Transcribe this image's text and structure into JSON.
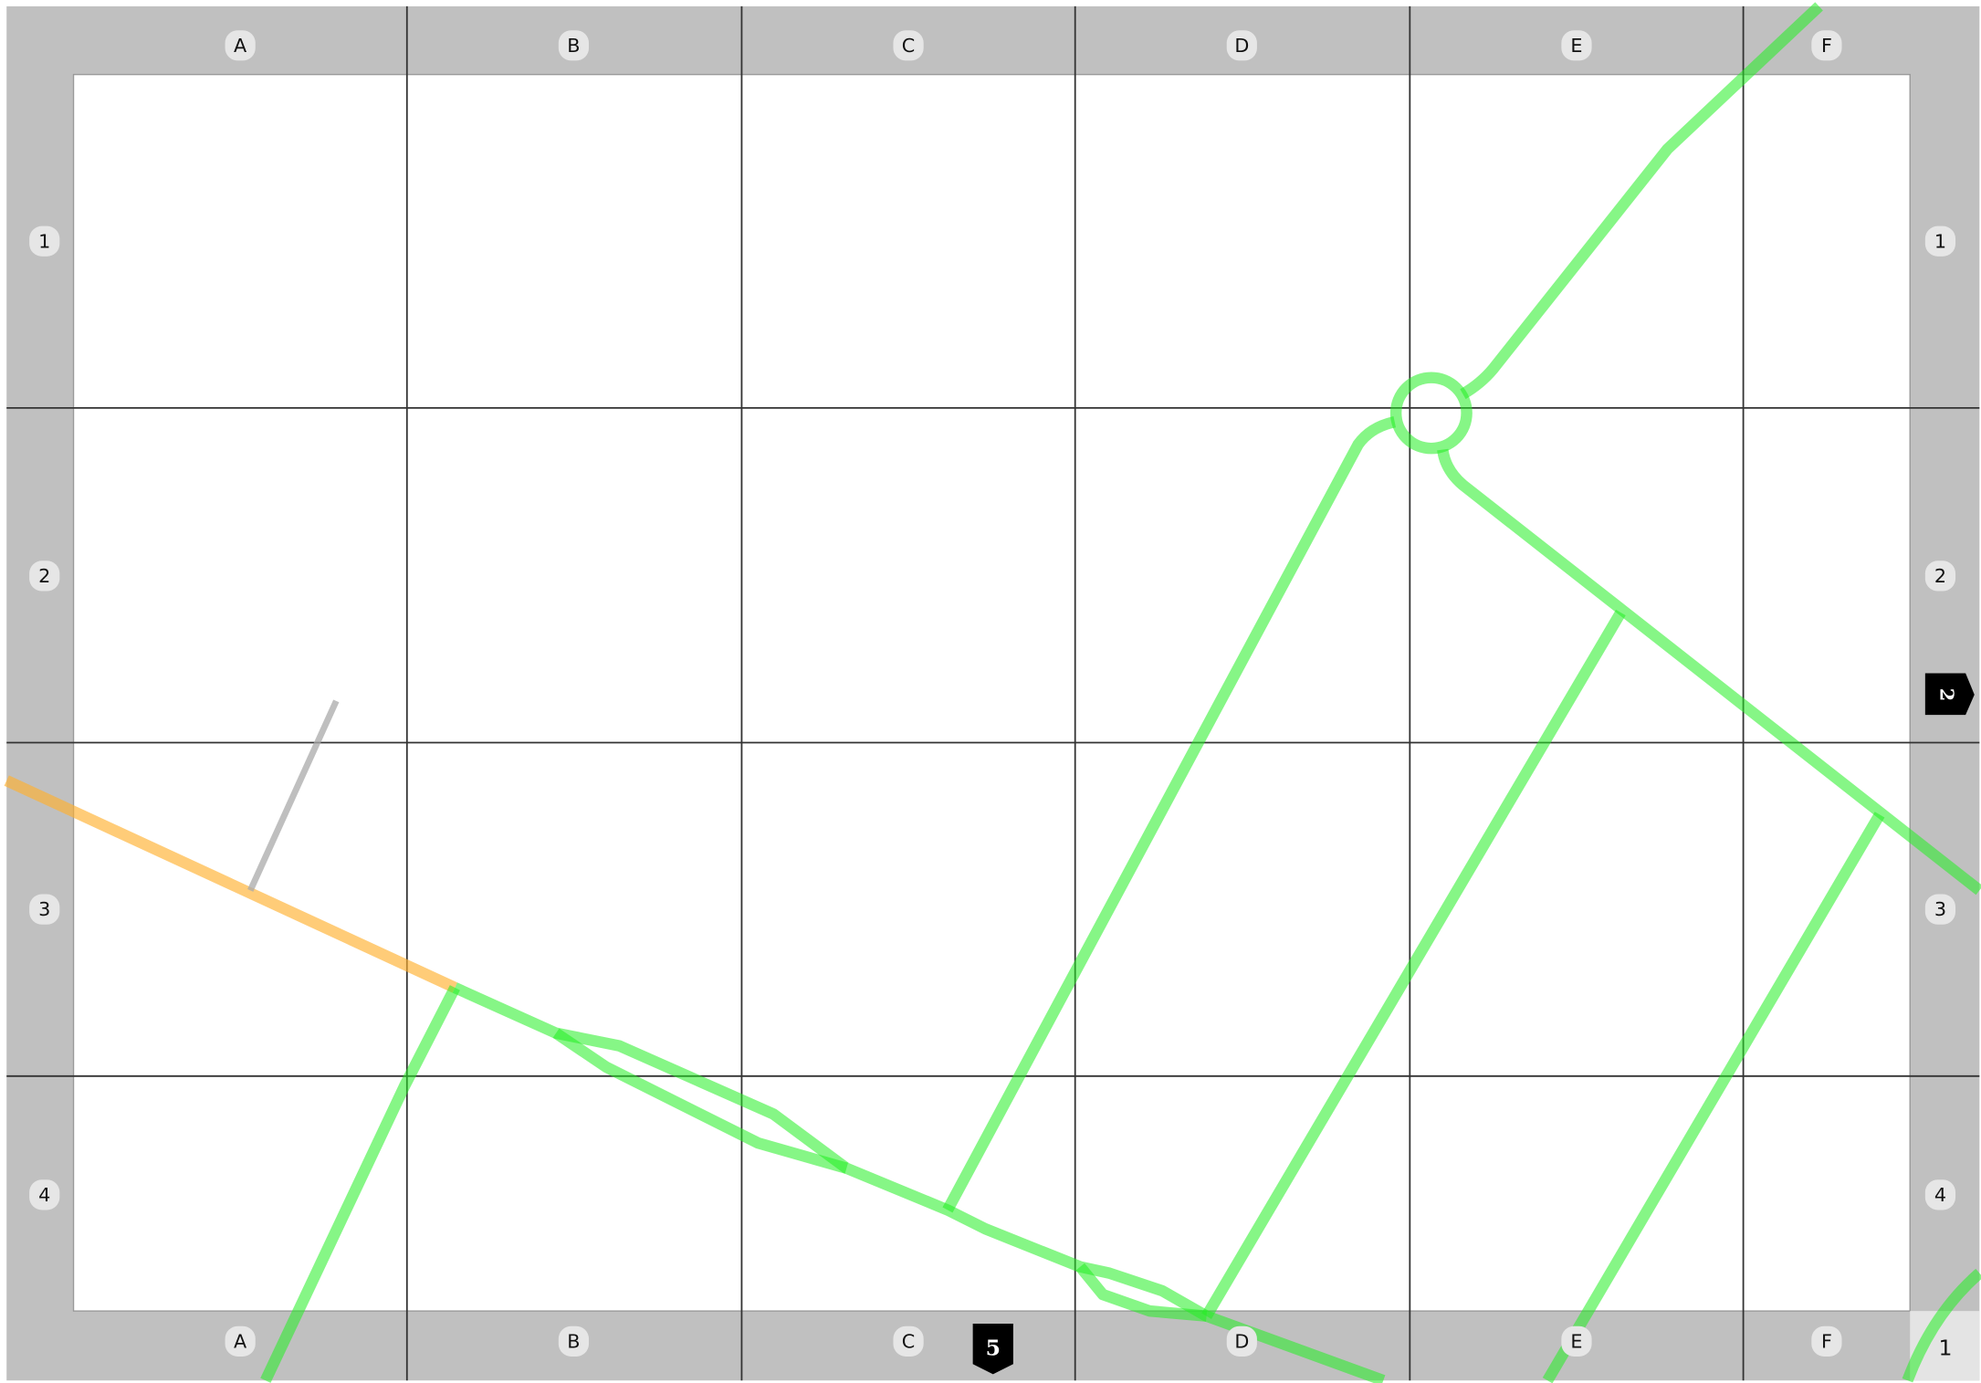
{
  "columns_top": [
    "A",
    "B",
    "C",
    "D",
    "E",
    "F"
  ],
  "columns_bottom": [
    "A",
    "B",
    "C",
    "D",
    "E",
    "F"
  ],
  "rows_left": [
    "1",
    "2",
    "3",
    "4"
  ],
  "rows_right": [
    "1",
    "2",
    "3",
    "4"
  ],
  "page_number": "1",
  "adjacent_pages": {
    "right": "2",
    "bottom": "5"
  }
}
